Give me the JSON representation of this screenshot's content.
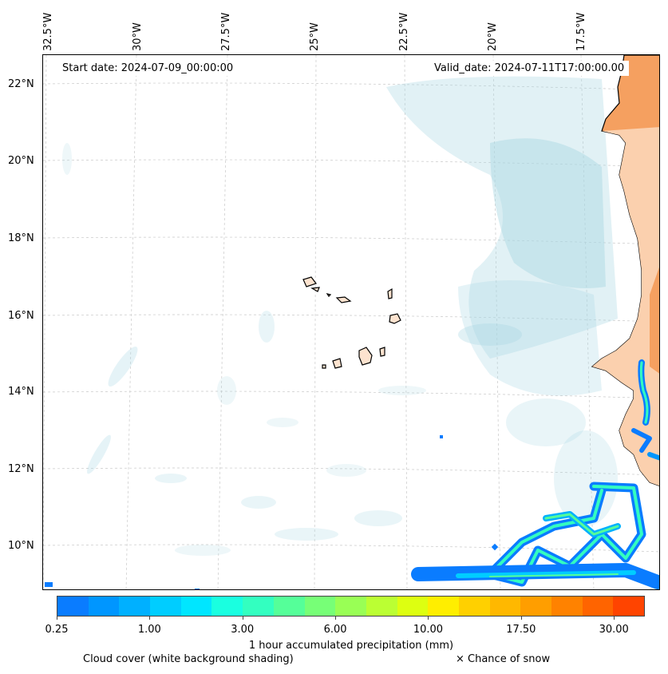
{
  "map": {
    "start_date": "Start date: 2024-07-09_00:00:00",
    "valid_date": "Valid_date: 2024-07-11T17:00:00.00",
    "lon_labels": [
      "32.5°W",
      "30°W",
      "27.5°W",
      "25°W",
      "22.5°W",
      "20°W",
      "17.5°W"
    ],
    "lat_labels": [
      "22°N",
      "20°N",
      "18°N",
      "16°N",
      "14°N",
      "12°N",
      "10°N"
    ]
  },
  "colorbar": {
    "label": "1 hour accumulated precipitation (mm)",
    "ticks": [
      "0.25",
      "1.00",
      "3.00",
      "6.00",
      "10.00",
      "17.50",
      "30.00"
    ],
    "colors": [
      "#0a7cff",
      "#0096ff",
      "#00b0ff",
      "#00cdff",
      "#00e6ff",
      "#1affe0",
      "#33ffc0",
      "#55ff99",
      "#77ff77",
      "#99ff55",
      "#bbff33",
      "#ddff11",
      "#ffee00",
      "#ffd000",
      "#ffb800",
      "#ff9e00",
      "#ff8200",
      "#ff6400",
      "#ff4400"
    ]
  },
  "legend": {
    "cloud_cover": "Cloud cover (white background shading)",
    "snow": "× Chance of snow"
  }
}
